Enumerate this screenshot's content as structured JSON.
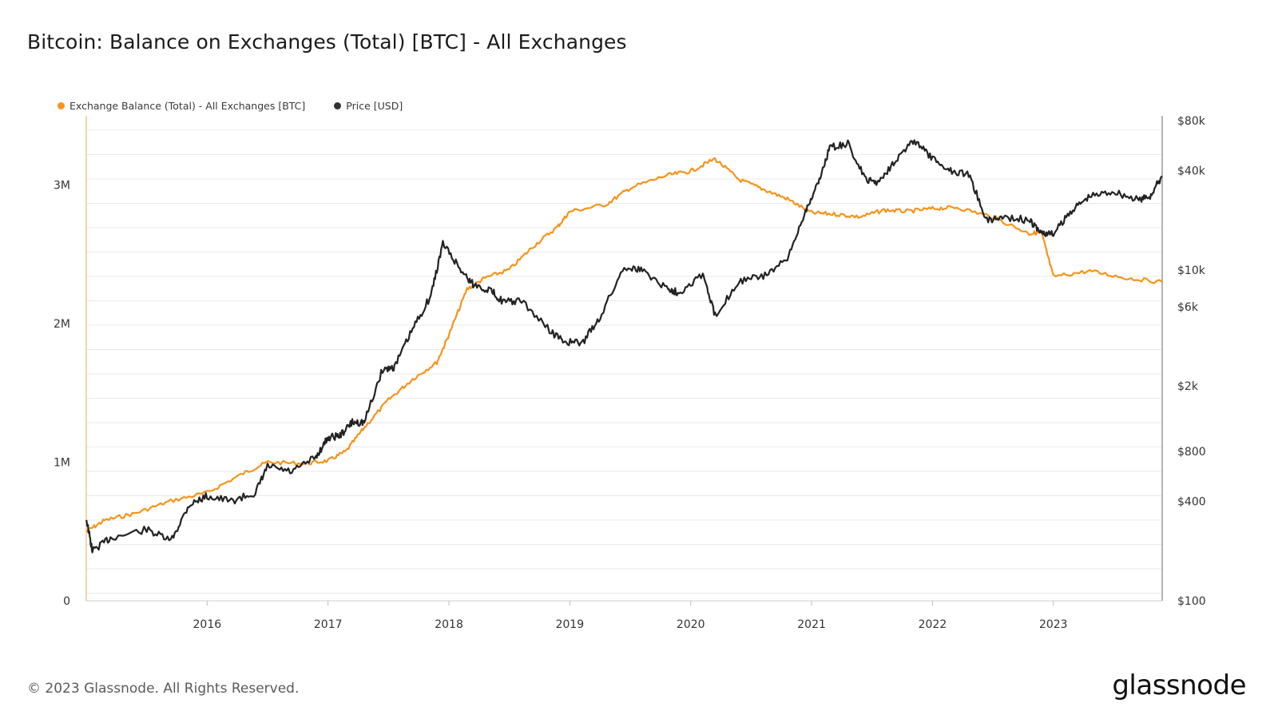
{
  "header": {
    "title": "Bitcoin: Balance on Exchanges (Total) [BTC] - All Exchanges"
  },
  "footer": {
    "copyright": "© 2023 Glassnode. All Rights Reserved.",
    "brand": "glassnode"
  },
  "colors": {
    "balance": "#f7931a",
    "price": "#222222",
    "grid": "#e9e9e9"
  },
  "chart_data": {
    "type": "line",
    "title": "Bitcoin: Balance on Exchanges (Total) [BTC] - All Exchanges",
    "legend_placement": "top-left",
    "grid": true,
    "x_range": [
      2015.0,
      2023.9
    ],
    "x_ticks": [
      "2016",
      "2017",
      "2018",
      "2019",
      "2020",
      "2021",
      "2022",
      "2023"
    ],
    "y_left": {
      "range": [
        0,
        3500000
      ],
      "ticks": [
        0,
        1000000,
        2000000,
        3000000
      ],
      "tick_labels": [
        "0",
        "1M",
        "2M",
        "3M"
      ]
    },
    "y_right": {
      "scale": "log",
      "range": [
        100,
        80000
      ],
      "ticks": [
        100,
        400,
        800,
        2000,
        6000,
        10000,
        40000,
        80000
      ],
      "tick_labels": [
        "$100",
        "$400",
        "$800",
        "$2k",
        "$6k",
        "$10k",
        "$40k",
        "$80k"
      ]
    },
    "series": [
      {
        "name": "Exchange Balance (Total) - All Exchanges [BTC]",
        "axis": "left",
        "x": [
          2015.0,
          2015.15,
          2015.4,
          2015.7,
          2016.0,
          2016.3,
          2016.5,
          2016.8,
          2017.0,
          2017.15,
          2017.3,
          2017.5,
          2017.7,
          2017.9,
          2018.0,
          2018.15,
          2018.3,
          2018.5,
          2018.7,
          2018.9,
          2019.0,
          2019.3,
          2019.5,
          2019.8,
          2020.0,
          2020.2,
          2020.4,
          2020.6,
          2020.8,
          2021.0,
          2021.2,
          2021.4,
          2021.6,
          2021.8,
          2022.0,
          2022.2,
          2022.5,
          2022.8,
          2022.9,
          2023.0,
          2023.3,
          2023.6,
          2023.9
        ],
        "values": [
          500000,
          580000,
          630000,
          720000,
          780000,
          920000,
          1000000,
          990000,
          1010000,
          1080000,
          1250000,
          1450000,
          1600000,
          1720000,
          1920000,
          2250000,
          2330000,
          2390000,
          2560000,
          2700000,
          2810000,
          2860000,
          2980000,
          3070000,
          3100000,
          3190000,
          3040000,
          2970000,
          2900000,
          2800000,
          2790000,
          2770000,
          2820000,
          2810000,
          2830000,
          2840000,
          2770000,
          2650000,
          2660000,
          2340000,
          2380000,
          2330000,
          2300000
        ]
      },
      {
        "name": "Price [USD]",
        "axis": "right",
        "x": [
          2015.0,
          2015.05,
          2015.2,
          2015.5,
          2015.7,
          2015.85,
          2016.0,
          2016.2,
          2016.4,
          2016.5,
          2016.7,
          2016.9,
          2017.0,
          2017.1,
          2017.2,
          2017.3,
          2017.45,
          2017.55,
          2017.7,
          2017.85,
          2017.95,
          2018.1,
          2018.2,
          2018.35,
          2018.45,
          2018.6,
          2018.85,
          2018.95,
          2019.1,
          2019.25,
          2019.45,
          2019.6,
          2019.8,
          2019.9,
          2020.1,
          2020.2,
          2020.4,
          2020.6,
          2020.8,
          2020.95,
          2021.05,
          2021.15,
          2021.3,
          2021.45,
          2021.55,
          2021.7,
          2021.85,
          2022.0,
          2022.15,
          2022.3,
          2022.45,
          2022.6,
          2022.8,
          2022.9,
          2023.0,
          2023.15,
          2023.3,
          2023.5,
          2023.7,
          2023.8,
          2023.9
        ],
        "values": [
          315,
          200,
          240,
          270,
          230,
          380,
          430,
          400,
          450,
          650,
          600,
          740,
          970,
          1000,
          1200,
          1200,
          2500,
          2600,
          4400,
          7000,
          14500,
          10000,
          8200,
          7500,
          6400,
          6500,
          4200,
          3700,
          3600,
          5200,
          10500,
          10000,
          7800,
          7300,
          9500,
          5300,
          8600,
          9200,
          11500,
          23000,
          33000,
          55000,
          58000,
          35000,
          34000,
          47000,
          61000,
          47000,
          40000,
          38000,
          20000,
          21000,
          20000,
          16800,
          16500,
          23000,
          28000,
          30000,
          26500,
          28000,
          37000
        ]
      }
    ]
  }
}
